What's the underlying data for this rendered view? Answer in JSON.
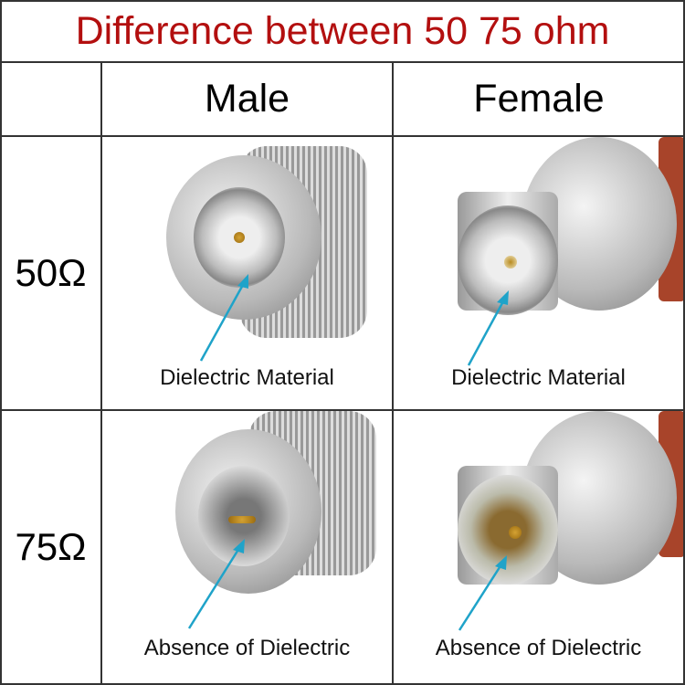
{
  "title": "Difference between 50 75 ohm",
  "columns": [
    "Male",
    "Female"
  ],
  "rows": [
    {
      "label": "50Ω",
      "male_caption": "Dielectric Material",
      "female_caption": "Dielectric Material"
    },
    {
      "label": "75Ω",
      "male_caption": "Absence of Dielectric",
      "female_caption": "Absence of Dielectric"
    }
  ],
  "colors": {
    "title": "#b30f0f",
    "arrow": "#1fa3c9",
    "grid": "#333333"
  }
}
